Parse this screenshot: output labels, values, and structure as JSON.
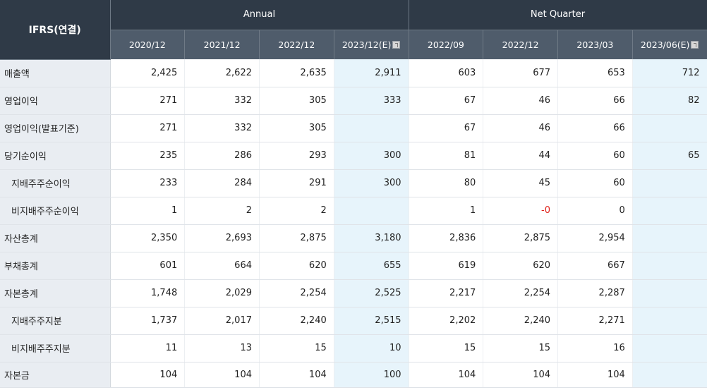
{
  "header": {
    "corner": "IFRS(연결)",
    "groups": {
      "annual": "Annual",
      "quarter": "Net Quarter"
    },
    "periods": [
      "2020/12",
      "2021/12",
      "2022/12",
      "2023/12(E)",
      "2022/09",
      "2022/12",
      "2023/03",
      "2023/06(E)"
    ]
  },
  "colors": {
    "header_dark": "#2f3a47",
    "header_mid": "#4f5c6b",
    "row_header_bg": "#e9edf2",
    "estimate_bg": "#e7f4fb",
    "negative": "#e0221b"
  },
  "rows": [
    {
      "label": "매출액",
      "sub": false,
      "values": [
        "2,425",
        "2,622",
        "2,635",
        "2,911",
        "603",
        "677",
        "653",
        "712"
      ]
    },
    {
      "label": "영업이익",
      "sub": false,
      "values": [
        "271",
        "332",
        "305",
        "333",
        "67",
        "46",
        "66",
        "82"
      ]
    },
    {
      "label": "영업이익(발표기준)",
      "sub": false,
      "values": [
        "271",
        "332",
        "305",
        "",
        "67",
        "46",
        "66",
        ""
      ]
    },
    {
      "label": "당기순이익",
      "sub": false,
      "values": [
        "235",
        "286",
        "293",
        "300",
        "81",
        "44",
        "60",
        "65"
      ]
    },
    {
      "label": "지배주주순이익",
      "sub": true,
      "values": [
        "233",
        "284",
        "291",
        "300",
        "80",
        "45",
        "60",
        ""
      ]
    },
    {
      "label": "비지배주주순이익",
      "sub": true,
      "values": [
        "1",
        "2",
        "2",
        "",
        "1",
        "-0",
        "0",
        ""
      ]
    },
    {
      "label": "자산총계",
      "sub": false,
      "values": [
        "2,350",
        "2,693",
        "2,875",
        "3,180",
        "2,836",
        "2,875",
        "2,954",
        ""
      ]
    },
    {
      "label": "부채총계",
      "sub": false,
      "values": [
        "601",
        "664",
        "620",
        "655",
        "619",
        "620",
        "667",
        ""
      ]
    },
    {
      "label": "자본총계",
      "sub": false,
      "values": [
        "1,748",
        "2,029",
        "2,254",
        "2,525",
        "2,217",
        "2,254",
        "2,287",
        ""
      ]
    },
    {
      "label": "지배주주지분",
      "sub": true,
      "values": [
        "1,737",
        "2,017",
        "2,240",
        "2,515",
        "2,202",
        "2,240",
        "2,271",
        ""
      ]
    },
    {
      "label": "비지배주주지분",
      "sub": true,
      "values": [
        "11",
        "13",
        "15",
        "10",
        "15",
        "15",
        "16",
        ""
      ]
    },
    {
      "label": "자본금",
      "sub": false,
      "values": [
        "104",
        "104",
        "104",
        "100",
        "104",
        "104",
        "104",
        ""
      ]
    }
  ]
}
